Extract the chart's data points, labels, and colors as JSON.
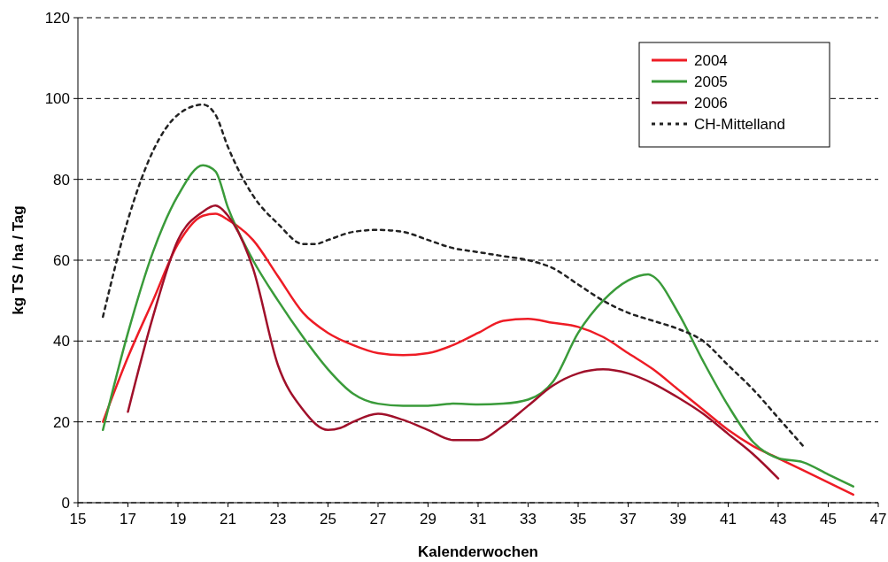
{
  "chart_data": {
    "type": "line",
    "xlabel": "Kalenderwochen",
    "ylabel": "kg TS / ha / Tag",
    "xlim": [
      15,
      47
    ],
    "xticks": [
      15,
      17,
      19,
      21,
      23,
      25,
      27,
      29,
      31,
      33,
      35,
      37,
      39,
      41,
      43,
      45,
      47
    ],
    "ylim": [
      0,
      120
    ],
    "yticks": [
      0,
      20,
      40,
      60,
      80,
      100,
      120
    ],
    "grid": "y",
    "legend": "top right",
    "series": [
      {
        "name": "2004",
        "color": "#ee1c25",
        "x": [
          16,
          17,
          18,
          19,
          20,
          20.5,
          21,
          22,
          23,
          24,
          25,
          26,
          27,
          28,
          29,
          30,
          31,
          32,
          33,
          34,
          35,
          36,
          37,
          38,
          39,
          40,
          41,
          42,
          43,
          44,
          45,
          46
        ],
        "values": [
          20,
          36,
          50,
          64,
          71,
          71.5,
          70,
          65,
          56,
          47,
          42,
          39,
          37,
          36.5,
          37,
          39,
          42,
          45,
          45.5,
          44.5,
          43.5,
          41,
          37,
          33,
          28,
          23,
          18,
          14,
          11,
          8,
          5,
          2
        ]
      },
      {
        "name": "2005",
        "color": "#3a9b3a",
        "x": [
          16,
          17,
          18,
          19,
          20,
          20.5,
          21,
          22,
          23,
          24,
          25,
          26,
          27,
          28,
          29,
          30,
          31,
          32,
          33,
          34,
          35,
          36,
          37,
          37.8,
          38,
          39,
          40,
          41,
          42,
          43,
          44,
          45,
          46
        ],
        "values": [
          18,
          42,
          62,
          76,
          83.5,
          82,
          73,
          60,
          50,
          41,
          33,
          27,
          24.5,
          24,
          24,
          24.5,
          24.3,
          24.5,
          25.5,
          30,
          42,
          50,
          55,
          56.5,
          56,
          47,
          35,
          24,
          15,
          11,
          10,
          7,
          4
        ]
      },
      {
        "name": "2006",
        "color": "#a0102a",
        "x": [
          17,
          18,
          19,
          20,
          20.5,
          21,
          22,
          23,
          24,
          25,
          25.5,
          26,
          27,
          28,
          29,
          30,
          31,
          32,
          33,
          34,
          35,
          36,
          37,
          38,
          39,
          40,
          41,
          42,
          43
        ],
        "values": [
          22.5,
          46,
          65,
          72,
          73.5,
          71,
          58,
          34,
          23,
          18,
          18.5,
          20,
          22,
          20.5,
          18,
          15.5,
          15.5,
          19,
          24,
          29,
          32,
          33,
          32,
          29.5,
          26,
          22,
          17,
          12,
          6
        ]
      },
      {
        "name": "CH-Mittelland",
        "color": "#222222",
        "line_style": "dotted",
        "x": [
          16,
          17,
          18,
          19,
          20,
          20.5,
          21,
          22,
          23,
          24,
          24.5,
          25,
          26,
          27,
          28,
          29,
          30,
          31,
          32,
          33,
          34,
          35,
          36,
          37,
          38,
          39,
          40,
          41,
          42,
          43,
          44
        ],
        "values": [
          46,
          70,
          87,
          96,
          98.5,
          96,
          88,
          76,
          69,
          64,
          64,
          65,
          67,
          67.5,
          67,
          65,
          63,
          62,
          61,
          60,
          58,
          54,
          50,
          47,
          45,
          43,
          40,
          34,
          28,
          21,
          14
        ]
      }
    ]
  }
}
